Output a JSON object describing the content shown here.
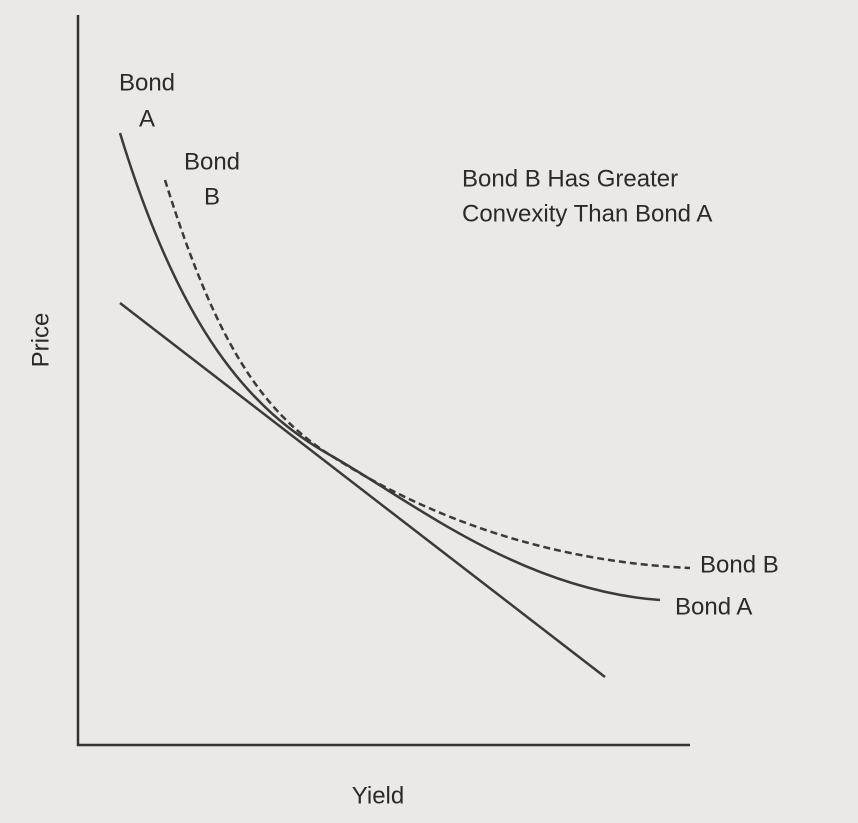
{
  "axes": {
    "y_label": "Price",
    "x_label": "Yield"
  },
  "curves": {
    "bond_a": {
      "top_label": [
        "Bond",
        "A"
      ],
      "end_label": "Bond A"
    },
    "bond_b": {
      "top_label": [
        "Bond",
        "B"
      ],
      "end_label": "Bond B"
    }
  },
  "annotation": [
    "Bond B Has Greater",
    "Convexity Than Bond A"
  ]
}
